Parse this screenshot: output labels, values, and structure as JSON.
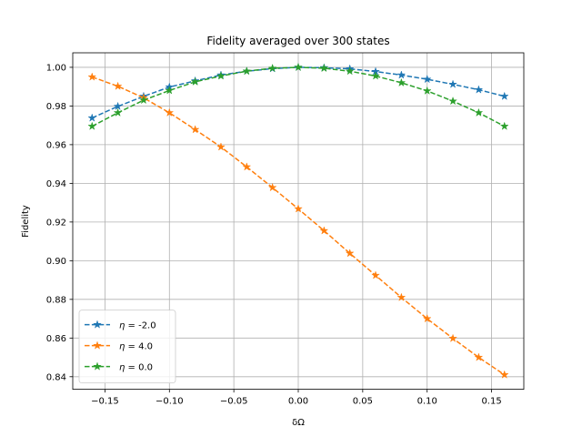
{
  "chart_data": {
    "type": "line",
    "title": "Fidelity averaged over 300 states",
    "xlabel": "δΩ",
    "ylabel": "Fidelity",
    "xlim": [
      -0.175,
      0.175
    ],
    "ylim": [
      0.8335,
      1.0075
    ],
    "xticks": [
      -0.15,
      -0.1,
      -0.05,
      0.0,
      0.05,
      0.1,
      0.15
    ],
    "xtick_labels": [
      "−0.15",
      "−0.10",
      "−0.05",
      "0.00",
      "0.05",
      "0.10",
      "0.15"
    ],
    "yticks": [
      0.84,
      0.86,
      0.88,
      0.9,
      0.92,
      0.94,
      0.96,
      0.98,
      1.0
    ],
    "ytick_labels": [
      "0.84",
      "0.86",
      "0.88",
      "0.90",
      "0.92",
      "0.94",
      "0.96",
      "0.98",
      "1.00"
    ],
    "grid": true,
    "legend_position": "lower-left",
    "x": [
      -0.16,
      -0.14,
      -0.12,
      -0.1,
      -0.08,
      -0.06,
      -0.04,
      -0.02,
      0.0,
      0.02,
      0.04,
      0.06,
      0.08,
      0.1,
      0.12,
      0.14,
      0.16
    ],
    "series": [
      {
        "name": "η =  -2.0",
        "name_symbol": "η",
        "name_rest": " =  -2.0",
        "color": "#1f77b4",
        "values": [
          0.9738,
          0.9798,
          0.985,
          0.9898,
          0.993,
          0.996,
          0.998,
          0.9993,
          1.0,
          0.9998,
          0.9992,
          0.9978,
          0.996,
          0.9938,
          0.9912,
          0.9884,
          0.985
        ]
      },
      {
        "name": "η = 4.0",
        "name_symbol": "η",
        "name_rest": " = 4.0",
        "color": "#ff7f0e",
        "values": [
          0.995,
          0.9902,
          0.9842,
          0.9765,
          0.9678,
          0.9588,
          0.9485,
          0.9378,
          0.9268,
          0.9155,
          0.9038,
          0.8924,
          0.881,
          0.87,
          0.8598,
          0.85,
          0.841
        ]
      },
      {
        "name": "η = 0.0",
        "name_symbol": "η",
        "name_rest": " = 0.0",
        "color": "#2ca02c",
        "values": [
          0.9695,
          0.9765,
          0.983,
          0.988,
          0.9925,
          0.9955,
          0.998,
          0.9995,
          1.0,
          0.9995,
          0.998,
          0.9955,
          0.992,
          0.9878,
          0.9825,
          0.9765,
          0.9695
        ]
      }
    ]
  }
}
